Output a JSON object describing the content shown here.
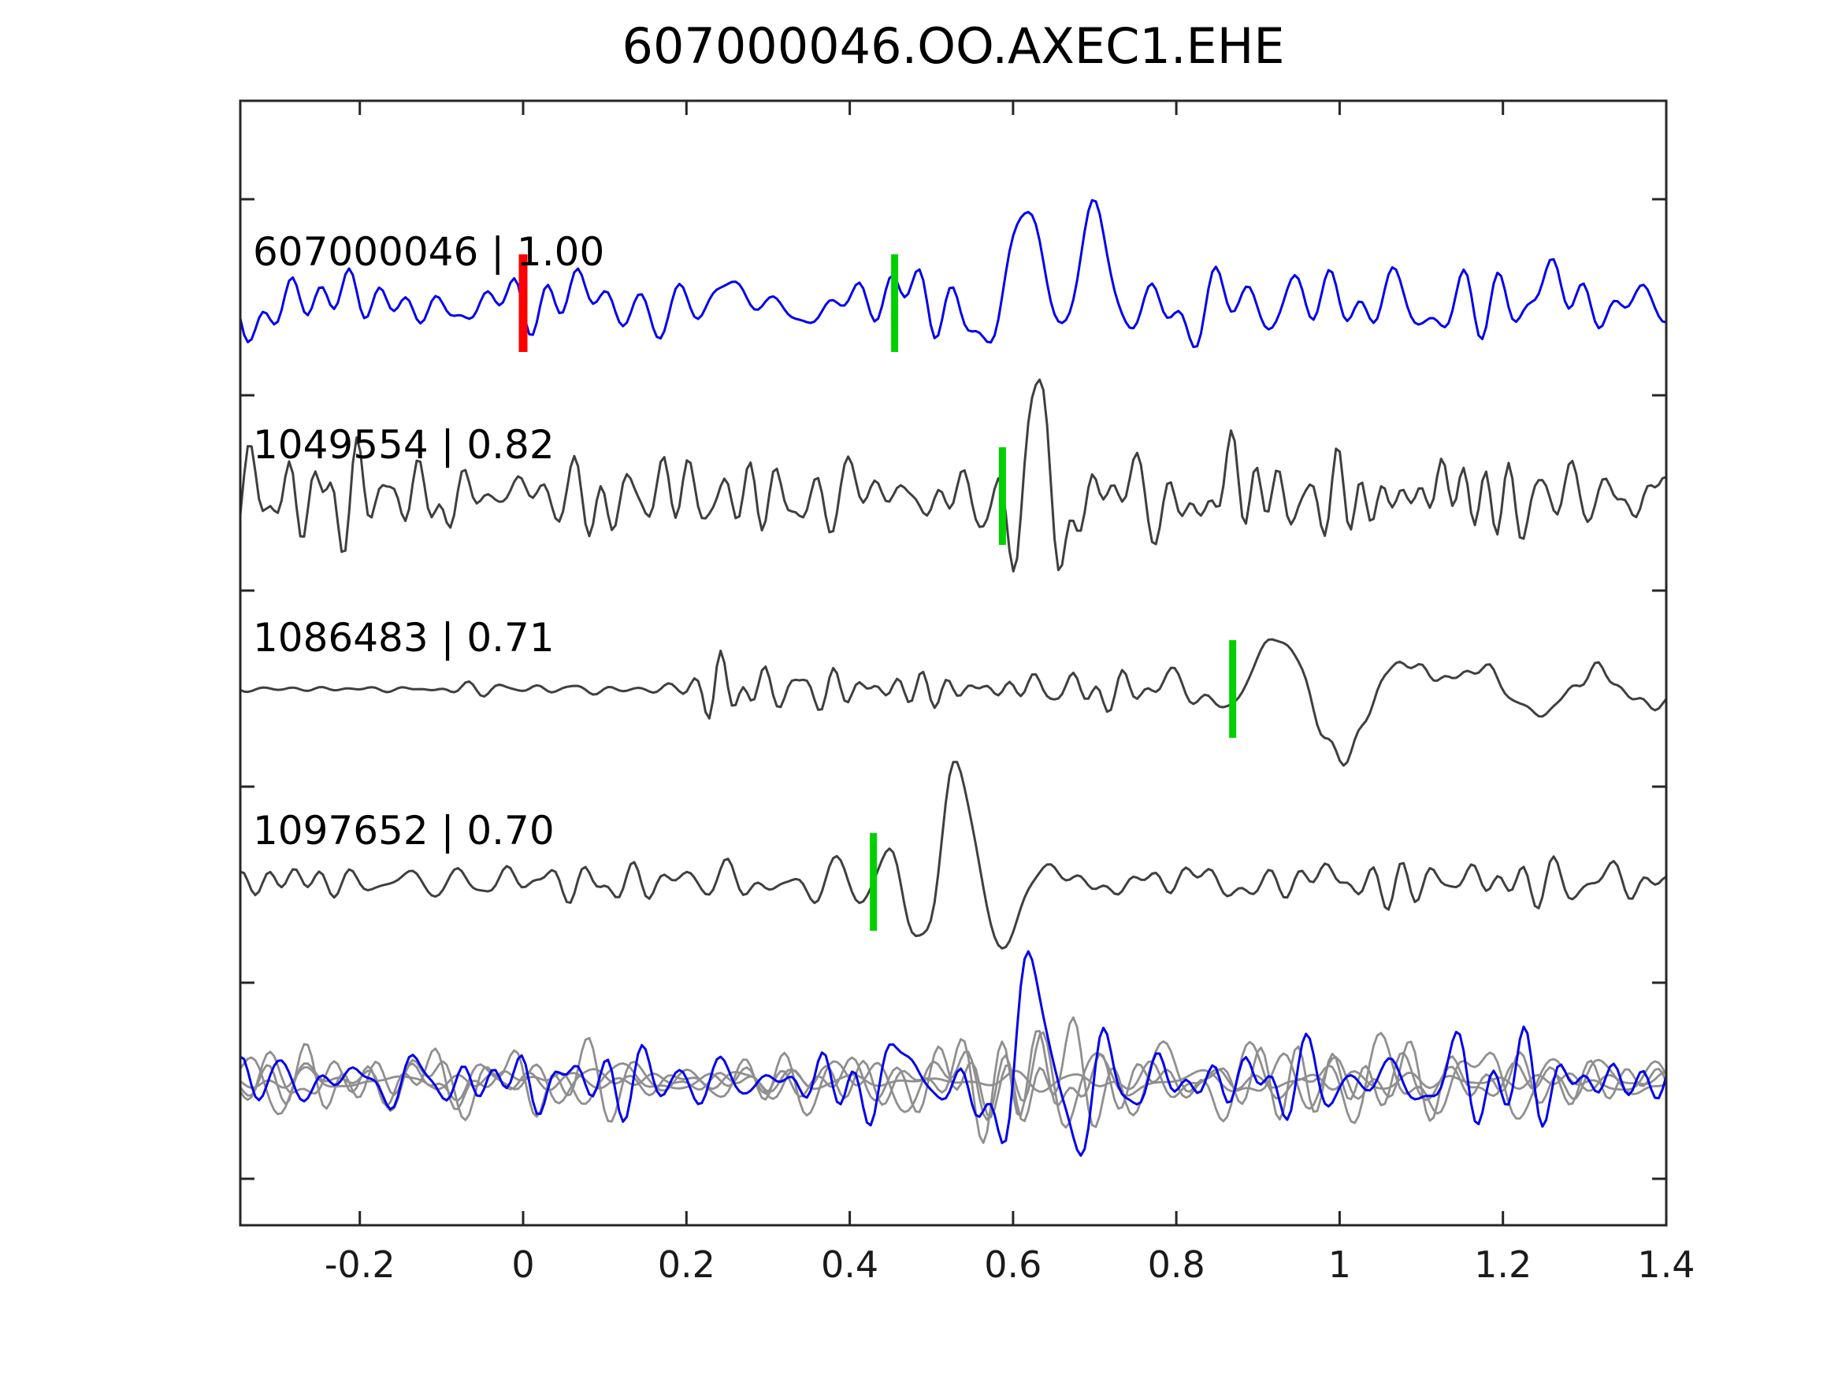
{
  "title": "607000046.OO.AXEC1.EHE",
  "chart_data": {
    "type": "line",
    "title": "607000046.OO.AXEC1.EHE",
    "subtitle": "",
    "xlabel": "",
    "ylabel": "",
    "xlim": [
      -0.3464,
      1.4
    ],
    "x_ticks": [
      -0.2,
      0,
      0.2,
      0.4,
      0.6,
      0.8,
      1,
      1.2,
      1.4
    ],
    "x_tick_labels": [
      "-0.2",
      "0",
      "0.2",
      "0.4",
      "0.6",
      "0.8",
      "1",
      "1.2",
      "1.4"
    ],
    "grid": false,
    "legend_position": "none",
    "colors": {
      "template_trace": "#0000ee",
      "detection_trace": "#3f3f3f",
      "overlay_gray": "#8f8f8f",
      "pick_marker": "#00d000",
      "reference_marker": "#ff0000",
      "axis": "#262626",
      "text": "#000000"
    },
    "rows": [
      {
        "label": "607000046 | 1.00",
        "event_id": "607000046",
        "similarity": "1.00",
        "kind": "template",
        "pick_x": 0.455,
        "reference_x": 0.0
      },
      {
        "label": "1049554 | 0.82",
        "event_id": "1049554",
        "similarity": "0.82",
        "kind": "detection",
        "pick_x": 0.587
      },
      {
        "label": "1086483 | 0.71",
        "event_id": "1086483",
        "similarity": "0.71",
        "kind": "detection",
        "pick_x": 0.869
      },
      {
        "label": "1097652 | 0.70",
        "event_id": "1097652",
        "similarity": "0.70",
        "kind": "detection",
        "pick_x": 0.429
      },
      {
        "label": "",
        "kind": "overlay",
        "description": "all traces overlaid (gray) with template trace (blue)"
      }
    ],
    "synthesis": {
      "samples": 380,
      "rows": [
        {
          "baseline": 257,
          "color": "#0000ee",
          "width": 3,
          "parts": [
            {
              "seed": 101,
              "fmin": 9,
              "fmax": 30,
              "k": 40,
              "env": [
                [
                  -0.35,
                  48
                ],
                [
                  0.5,
                  48
                ],
                [
                  0.56,
                  26
                ],
                [
                  0.72,
                  26
                ],
                [
                  0.78,
                  48
                ],
                [
                  1.4,
                  48
                ]
              ]
            },
            {
              "seed": 111,
              "fmin": 3,
              "fmax": 7,
              "k": 12,
              "env": [
                [
                  -0.35,
                  20
                ],
                [
                  1.4,
                  20
                ]
              ]
            }
          ],
          "events": [
            {
              "t0": 0.615,
              "sigma": 0.035,
              "f": 7.5,
              "a": 128,
              "ph": 1.4
            },
            {
              "t0": 0.7,
              "sigma": 0.028,
              "f": 8,
              "a": 110,
              "ph": 1.7
            },
            {
              "t0": 0.45,
              "sigma": 0.025,
              "f": 12,
              "a": 52,
              "ph": 0.5
            },
            {
              "t0": 1.24,
              "sigma": 0.02,
              "f": 13,
              "a": 48,
              "ph": 1.0
            }
          ]
        },
        {
          "baseline": 502,
          "color": "#3f3f3f",
          "width": 3,
          "parts": [
            {
              "seed": 202,
              "fmin": 15,
              "fmax": 40,
              "k": 50,
              "env": [
                [
                  -0.35,
                  68
                ],
                [
                  0.55,
                  68
                ],
                [
                  0.75,
                  72
                ],
                [
                  1.4,
                  62
                ]
              ]
            },
            {
              "seed": 212,
              "fmin": 4,
              "fmax": 9,
              "k": 12,
              "env": [
                [
                  -0.35,
                  18
                ],
                [
                  1.4,
                  18
                ]
              ]
            }
          ],
          "events": [
            {
              "t0": 0.635,
              "sigma": 0.035,
              "f": 12,
              "a": 115,
              "ph": 2.0
            }
          ]
        },
        {
          "baseline": 747,
          "color": "#3f3f3f",
          "width": 3,
          "parts": [
            {
              "seed": 303,
              "fmin": 14,
              "fmax": 38,
              "k": 45,
              "env": [
                [
                  -0.35,
                  8
                ],
                [
                  0.19,
                  8
                ],
                [
                  0.215,
                  22
                ],
                [
                  0.235,
                  62
                ],
                [
                  0.27,
                  55
                ],
                [
                  0.31,
                  28
                ],
                [
                  0.4,
                  30
                ],
                [
                  0.7,
                  28
                ],
                [
                  0.85,
                  20
                ],
                [
                  1.0,
                  13
                ],
                [
                  1.4,
                  11
                ]
              ]
            },
            {
              "seed": 313,
              "fmin": 3.5,
              "fmax": 8,
              "k": 14,
              "env": [
                [
                  -0.35,
                  0
                ],
                [
                  0.6,
                  4
                ],
                [
                  0.75,
                  14
                ],
                [
                  0.88,
                  65
                ],
                [
                  1.0,
                  95
                ],
                [
                  1.12,
                  90
                ],
                [
                  1.25,
                  55
                ],
                [
                  1.4,
                  40
                ]
              ]
            }
          ],
          "events": []
        },
        {
          "baseline": 992,
          "color": "#3f3f3f",
          "width": 3,
          "parts": [
            {
              "seed": 404,
              "fmin": 12,
              "fmax": 34,
              "k": 45,
              "env": [
                [
                  -0.35,
                  26
                ],
                [
                  0.42,
                  30
                ],
                [
                  0.66,
                  30
                ],
                [
                  0.72,
                  26
                ],
                [
                  1.05,
                  28
                ],
                [
                  1.2,
                  36
                ],
                [
                  1.3,
                  34
                ],
                [
                  1.4,
                  38
                ]
              ]
            },
            {
              "seed": 414,
              "fmin": 4,
              "fmax": 8,
              "k": 10,
              "env": [
                [
                  -0.35,
                  10
                ],
                [
                  1.4,
                  10
                ]
              ]
            }
          ],
          "events": [
            {
              "t0": 0.545,
              "sigma": 0.05,
              "f": 8.5,
              "a": 145,
              "ph": 2.2
            },
            {
              "t0": 0.44,
              "sigma": 0.02,
              "f": 11,
              "a": 55,
              "ph": 0.3
            }
          ]
        }
      ],
      "overlay": {
        "baseline": 1245,
        "gray": {
          "color": "#8f8f8f",
          "width": 2.8,
          "fmin": 7,
          "fmax": 26,
          "k": 40,
          "env": [
            [
              -0.35,
              55
            ],
            [
              0.35,
              55
            ],
            [
              0.5,
              80
            ],
            [
              0.62,
              100
            ],
            [
              0.72,
              75
            ],
            [
              0.9,
              55
            ],
            [
              1.05,
              70
            ],
            [
              1.15,
              80
            ],
            [
              1.3,
              55
            ],
            [
              1.4,
              50
            ]
          ],
          "traces": [
            {
              "seed": 511,
              "factor": 1.0
            },
            {
              "seed": 512,
              "factor": 0.8
            },
            {
              "seed": 513,
              "factor": 0.28
            },
            {
              "seed": 514,
              "factor": 0.7
            }
          ]
        },
        "blue": {
          "color": "#0000ee",
          "width": 3,
          "seed": 555,
          "fmin": 10,
          "fmax": 30,
          "k": 45,
          "env": [
            [
              -0.35,
              50
            ],
            [
              0.45,
              60
            ],
            [
              0.55,
              70
            ],
            [
              0.65,
              80
            ],
            [
              0.75,
              55
            ],
            [
              1.0,
              50
            ],
            [
              1.15,
              65
            ],
            [
              1.4,
              45
            ]
          ],
          "events": [
            {
              "t0": 0.615,
              "sigma": 0.04,
              "f": 9,
              "a": 145,
              "ph": 1.2
            },
            {
              "t0": 0.45,
              "sigma": 0.03,
              "f": 12,
              "a": 60,
              "ph": 0.8
            }
          ]
        }
      },
      "markers": {
        "half_height": 62,
        "pick_width": 9,
        "ref_width": 11
      }
    }
  }
}
